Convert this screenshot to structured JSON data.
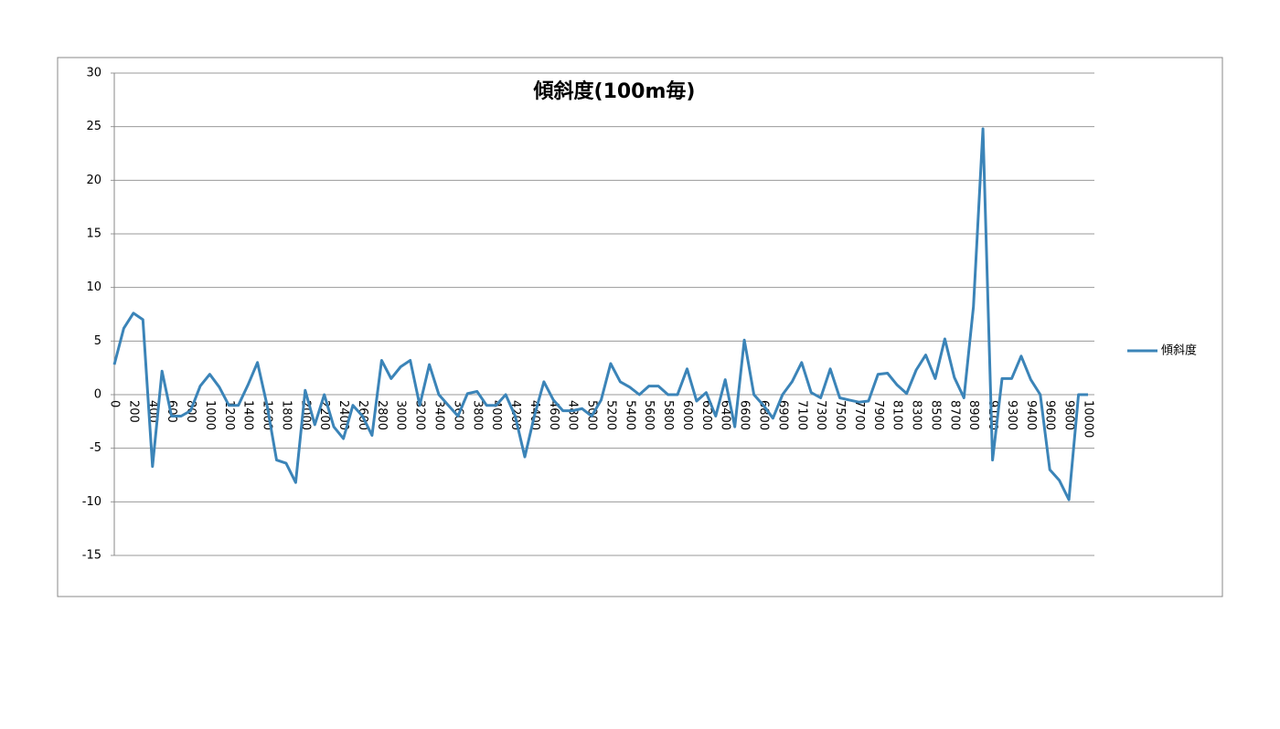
{
  "chart_data": {
    "type": "line",
    "title": "傾斜度(100m毎)",
    "categories": [
      "0",
      null,
      "200",
      null,
      "400",
      null,
      "600",
      null,
      "800",
      null,
      "1000",
      null,
      "1200",
      null,
      "1400",
      null,
      "1600",
      null,
      "1800",
      null,
      "2000",
      null,
      "2200",
      null,
      "2400",
      null,
      "2600",
      null,
      "2800",
      null,
      "3000",
      null,
      "3200",
      null,
      "3400",
      null,
      "3600",
      null,
      "3800",
      null,
      "4000",
      null,
      "4200",
      null,
      "4400",
      null,
      "4600",
      null,
      "4800",
      null,
      "5000",
      null,
      "5200",
      null,
      "5400",
      null,
      "5600",
      null,
      "5800",
      null,
      "6000",
      null,
      "6200",
      null,
      "6400",
      null,
      "6600",
      null,
      "6800",
      null,
      "6900",
      null,
      "7100",
      null,
      "7300",
      null,
      "7500",
      null,
      "7700",
      null,
      "7900",
      null,
      "8100",
      null,
      "8300",
      null,
      "8500",
      null,
      "8700",
      null,
      "8900",
      null,
      "9100",
      null,
      "9300",
      null,
      "9400",
      null,
      "9600",
      null,
      "9800",
      null,
      "10000"
    ],
    "series": [
      {
        "name": "傾斜度",
        "color": "#3b84b8",
        "values": [
          2.8,
          6.2,
          7.6,
          7.0,
          -6.7,
          2.2,
          -2,
          -2,
          -1.5,
          0.8,
          1.9,
          0.7,
          -1,
          -1,
          0.9,
          3.0,
          -1,
          -6.1,
          -6.4,
          -8.2,
          0.4,
          -2.8,
          0,
          -3,
          -4.1,
          -1,
          -2,
          -3.8,
          3.2,
          1.5,
          2.6,
          3.2,
          -1,
          2.8,
          0,
          -1,
          -2,
          0.1,
          0.3,
          -1,
          -1,
          0,
          -2,
          -5.8,
          -2,
          1.2,
          -0.5,
          -1.5,
          -1.5,
          -1.3,
          -2,
          -0.5,
          2.9,
          1.2,
          0.7,
          0,
          0.8,
          0.8,
          0,
          0,
          2.4,
          -0.6,
          0.2,
          -2,
          1.4,
          -3,
          5.1,
          0,
          -1,
          -2.2,
          0,
          1.2,
          3.0,
          0.2,
          -0.3,
          2.4,
          -0.3,
          -0.5,
          -0.7,
          -0.6,
          1.9,
          2.0,
          0.9,
          0.1,
          2.3,
          3.7,
          1.5,
          5.2,
          1.6,
          -0.3,
          8.2,
          24.8,
          -6.1,
          1.5,
          1.5,
          3.6,
          1.4,
          0,
          -7.0,
          -8.0,
          -9.8,
          0,
          0
        ]
      }
    ],
    "ylim": [
      -15,
      30
    ],
    "yticks": [
      -15,
      -10,
      -5,
      0,
      5,
      10,
      15,
      20,
      25,
      30
    ],
    "grid": true,
    "legend": "right"
  }
}
